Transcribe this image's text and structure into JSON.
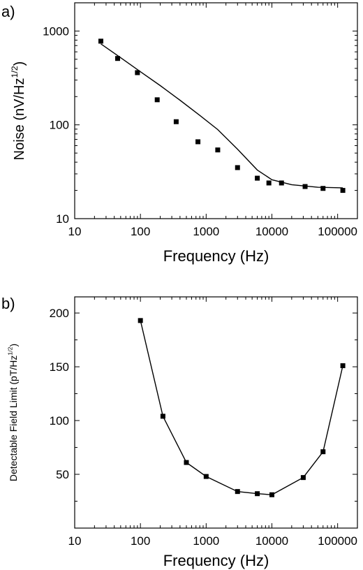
{
  "chart_data": [
    {
      "type": "scatter",
      "panel_label": "a)",
      "xlabel": "Frequency (Hz)",
      "ylabel_main": "Noise (nV/Hz",
      "ylabel_sup": "1/2",
      "ylabel_close": ")",
      "xscale": "log",
      "yscale": "log",
      "xlim": [
        10,
        200000
      ],
      "ylim": [
        10,
        2000
      ],
      "xticks": [
        10,
        100,
        1000,
        10000,
        100000
      ],
      "xtick_labels": [
        "10",
        "100",
        "1000",
        "10000",
        "100000"
      ],
      "yticks": [
        10,
        100,
        1000
      ],
      "ytick_labels": [
        "10",
        "100",
        "1000"
      ],
      "grid": false,
      "series": [
        {
          "marker": "square",
          "x": [
            25,
            45,
            90,
            180,
            350,
            750,
            1500,
            3000,
            6000,
            9000,
            14000,
            32000,
            60000,
            120000
          ],
          "y": [
            780,
            510,
            360,
            185,
            108,
            66,
            54,
            35,
            27,
            24,
            24,
            22,
            21,
            20
          ]
        },
        {
          "marker": "none",
          "style": "fit-line",
          "x": [
            25,
            50,
            100,
            200,
            400,
            800,
            1500,
            3000,
            6000,
            10000,
            20000,
            50000,
            120000
          ],
          "y": [
            730,
            520,
            368,
            262,
            183,
            126,
            89,
            55,
            33,
            26,
            23,
            21.6,
            21.3
          ]
        }
      ]
    },
    {
      "type": "line",
      "panel_label": "b)",
      "xlabel": "Frequency (Hz)",
      "ylabel_main": "Detectable Field Limit (pT/Hz",
      "ylabel_sup": "1/2",
      "ylabel_close": ")",
      "xscale": "log",
      "yscale": "linear",
      "xlim": [
        10,
        200000
      ],
      "ylim": [
        0,
        215
      ],
      "xticks": [
        10,
        100,
        1000,
        10000,
        100000
      ],
      "xtick_labels": [
        "10",
        "100",
        "1000",
        "10000",
        "100000"
      ],
      "yticks": [
        50,
        100,
        150,
        200
      ],
      "ytick_labels": [
        "50",
        "100",
        "150",
        "200"
      ],
      "grid": false,
      "series": [
        {
          "marker": "square",
          "x": [
            100,
            220,
            500,
            1000,
            3000,
            6000,
            10000,
            30000,
            60000,
            120000
          ],
          "y": [
            193,
            104,
            61,
            48,
            34,
            32,
            31,
            47,
            71,
            151
          ]
        }
      ]
    }
  ]
}
